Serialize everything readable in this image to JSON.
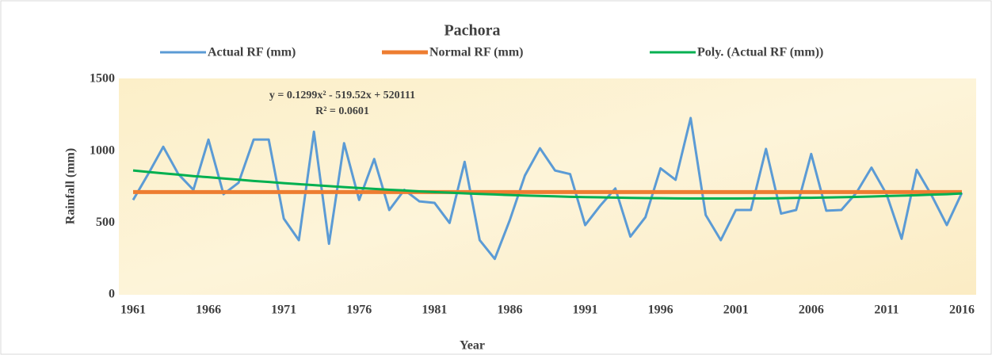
{
  "chart_data": {
    "type": "line",
    "title": "Pachora",
    "x_label": "Year",
    "y_label": "Rainfall (mm)",
    "annotations": [
      "y = 0.1299x² - 519.52x + 520111",
      "R² = 0.0601"
    ],
    "x": [
      1961,
      1962,
      1963,
      1964,
      1965,
      1966,
      1967,
      1968,
      1969,
      1970,
      1971,
      1972,
      1973,
      1974,
      1975,
      1976,
      1977,
      1978,
      1979,
      1980,
      1981,
      1982,
      1983,
      1984,
      1985,
      1986,
      1987,
      1988,
      1989,
      1990,
      1991,
      1992,
      1993,
      1994,
      1995,
      1996,
      1997,
      1998,
      1999,
      2000,
      2001,
      2002,
      2003,
      2004,
      2005,
      2006,
      2007,
      2008,
      2009,
      2010,
      2011,
      2012,
      2013,
      2014,
      2015,
      2016
    ],
    "series": [
      {
        "name": "Actual RF (mm)",
        "color": "#5b9bd5",
        "values": [
          660,
          840,
          1030,
          840,
          730,
          1080,
          700,
          780,
          1080,
          1080,
          530,
          380,
          1135,
          355,
          1055,
          660,
          945,
          590,
          730,
          650,
          640,
          500,
          925,
          380,
          250,
          520,
          830,
          1020,
          865,
          840,
          485,
          620,
          740,
          405,
          540,
          880,
          800,
          1230,
          555,
          380,
          590,
          590,
          1015,
          565,
          590,
          980,
          585,
          590,
          710,
          885,
          700,
          390,
          870,
          690,
          485,
          710
        ]
      },
      {
        "name": "Normal RF (mm)",
        "color": "#ed7d31",
        "values": [
          715,
          715,
          715,
          715,
          715,
          715,
          715,
          715,
          715,
          715,
          715,
          715,
          715,
          715,
          715,
          715,
          715,
          715,
          715,
          715,
          715,
          715,
          715,
          715,
          715,
          715,
          715,
          715,
          715,
          715,
          715,
          715,
          715,
          715,
          715,
          715,
          715,
          715,
          715,
          715,
          715,
          715,
          715,
          715,
          715,
          715,
          715,
          715,
          715,
          715,
          715,
          715,
          715,
          715,
          715,
          715
        ]
      },
      {
        "name": "Poly. (Actual RF (mm))",
        "color": "#00b050",
        "values": [
          865,
          855,
          845,
          836,
          826,
          818,
          809,
          801,
          792,
          785,
          777,
          770,
          763,
          756,
          749,
          743,
          737,
          731,
          726,
          720,
          715,
          711,
          706,
          702,
          698,
          694,
          691,
          688,
          685,
          682,
          680,
          678,
          676,
          674,
          673,
          672,
          671,
          670,
          670,
          670,
          670,
          671,
          671,
          672,
          674,
          675,
          677,
          679,
          681,
          684,
          687,
          690,
          693,
          697,
          700,
          705
        ]
      }
    ],
    "xlim": [
      1961,
      2016
    ],
    "xticks": [
      1961,
      1966,
      1971,
      1976,
      1981,
      1986,
      1991,
      1996,
      2001,
      2006,
      2011,
      2016
    ],
    "ylim": [
      0,
      1500
    ],
    "yticks": [
      0,
      500,
      1000,
      1500
    ]
  }
}
